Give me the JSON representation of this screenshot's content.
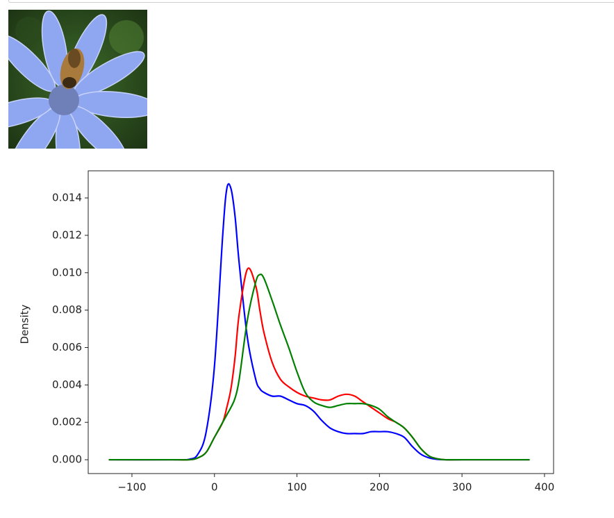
{
  "chart_data": {
    "type": "line",
    "ylabel": "Density",
    "x": [
      -128,
      -50,
      -30,
      -20,
      -10,
      0,
      10,
      15,
      20,
      25,
      30,
      40,
      50,
      55,
      60,
      70,
      80,
      90,
      100,
      110,
      120,
      130,
      140,
      150,
      160,
      170,
      180,
      190,
      200,
      210,
      220,
      230,
      240,
      250,
      260,
      270,
      280,
      300,
      382
    ],
    "series": [
      {
        "color": "#0000ff",
        "values": [
          0,
          0,
          3e-05,
          0.0003,
          0.0015,
          0.005,
          0.012,
          0.0145,
          0.0145,
          0.013,
          0.0105,
          0.0065,
          0.0043,
          0.0038,
          0.0036,
          0.0034,
          0.0034,
          0.0032,
          0.003,
          0.0029,
          0.0026,
          0.0021,
          0.0017,
          0.0015,
          0.0014,
          0.0014,
          0.0014,
          0.0015,
          0.0015,
          0.0015,
          0.0014,
          0.0012,
          0.0007,
          0.0003,
          0.0001,
          2e-05,
          0,
          0,
          0
        ]
      },
      {
        "color": "#ff0000",
        "values": [
          0,
          0,
          0,
          0.0001,
          0.0004,
          0.0012,
          0.002,
          0.0028,
          0.0038,
          0.0055,
          0.0078,
          0.0102,
          0.0093,
          0.008,
          0.0068,
          0.0052,
          0.0043,
          0.0039,
          0.0036,
          0.0034,
          0.0033,
          0.0032,
          0.0032,
          0.0034,
          0.0035,
          0.0034,
          0.0031,
          0.0028,
          0.0025,
          0.0022,
          0.002,
          0.0017,
          0.0012,
          0.0006,
          0.0002,
          5e-05,
          0,
          0,
          0
        ]
      },
      {
        "color": "#008000",
        "values": [
          0,
          0,
          0,
          0.0001,
          0.0004,
          0.0012,
          0.002,
          0.0024,
          0.0028,
          0.0033,
          0.0043,
          0.0075,
          0.0095,
          0.0099,
          0.0097,
          0.0085,
          0.0072,
          0.006,
          0.0047,
          0.0036,
          0.0031,
          0.0029,
          0.0028,
          0.0029,
          0.003,
          0.003,
          0.003,
          0.0029,
          0.0027,
          0.0023,
          0.002,
          0.0017,
          0.0012,
          0.0006,
          0.0002,
          5e-05,
          0,
          0,
          0
        ]
      }
    ],
    "xlim": [
      -153,
      411
    ],
    "ylim": [
      -0.00074,
      0.01545
    ],
    "xticks": [
      {
        "value": -100,
        "label": "−100"
      },
      0,
      100,
      200,
      300,
      400
    ],
    "yticks": [
      {
        "value": 0,
        "label": "0.000"
      },
      {
        "value": 0.002,
        "label": "0.002"
      },
      {
        "value": 0.004,
        "label": "0.004"
      },
      {
        "value": 0.006,
        "label": "0.006"
      },
      {
        "value": 0.008,
        "label": "0.008"
      },
      {
        "value": 0.01,
        "label": "0.010"
      },
      {
        "value": 0.012,
        "label": "0.012"
      },
      {
        "value": 0.014,
        "label": "0.014"
      }
    ]
  }
}
